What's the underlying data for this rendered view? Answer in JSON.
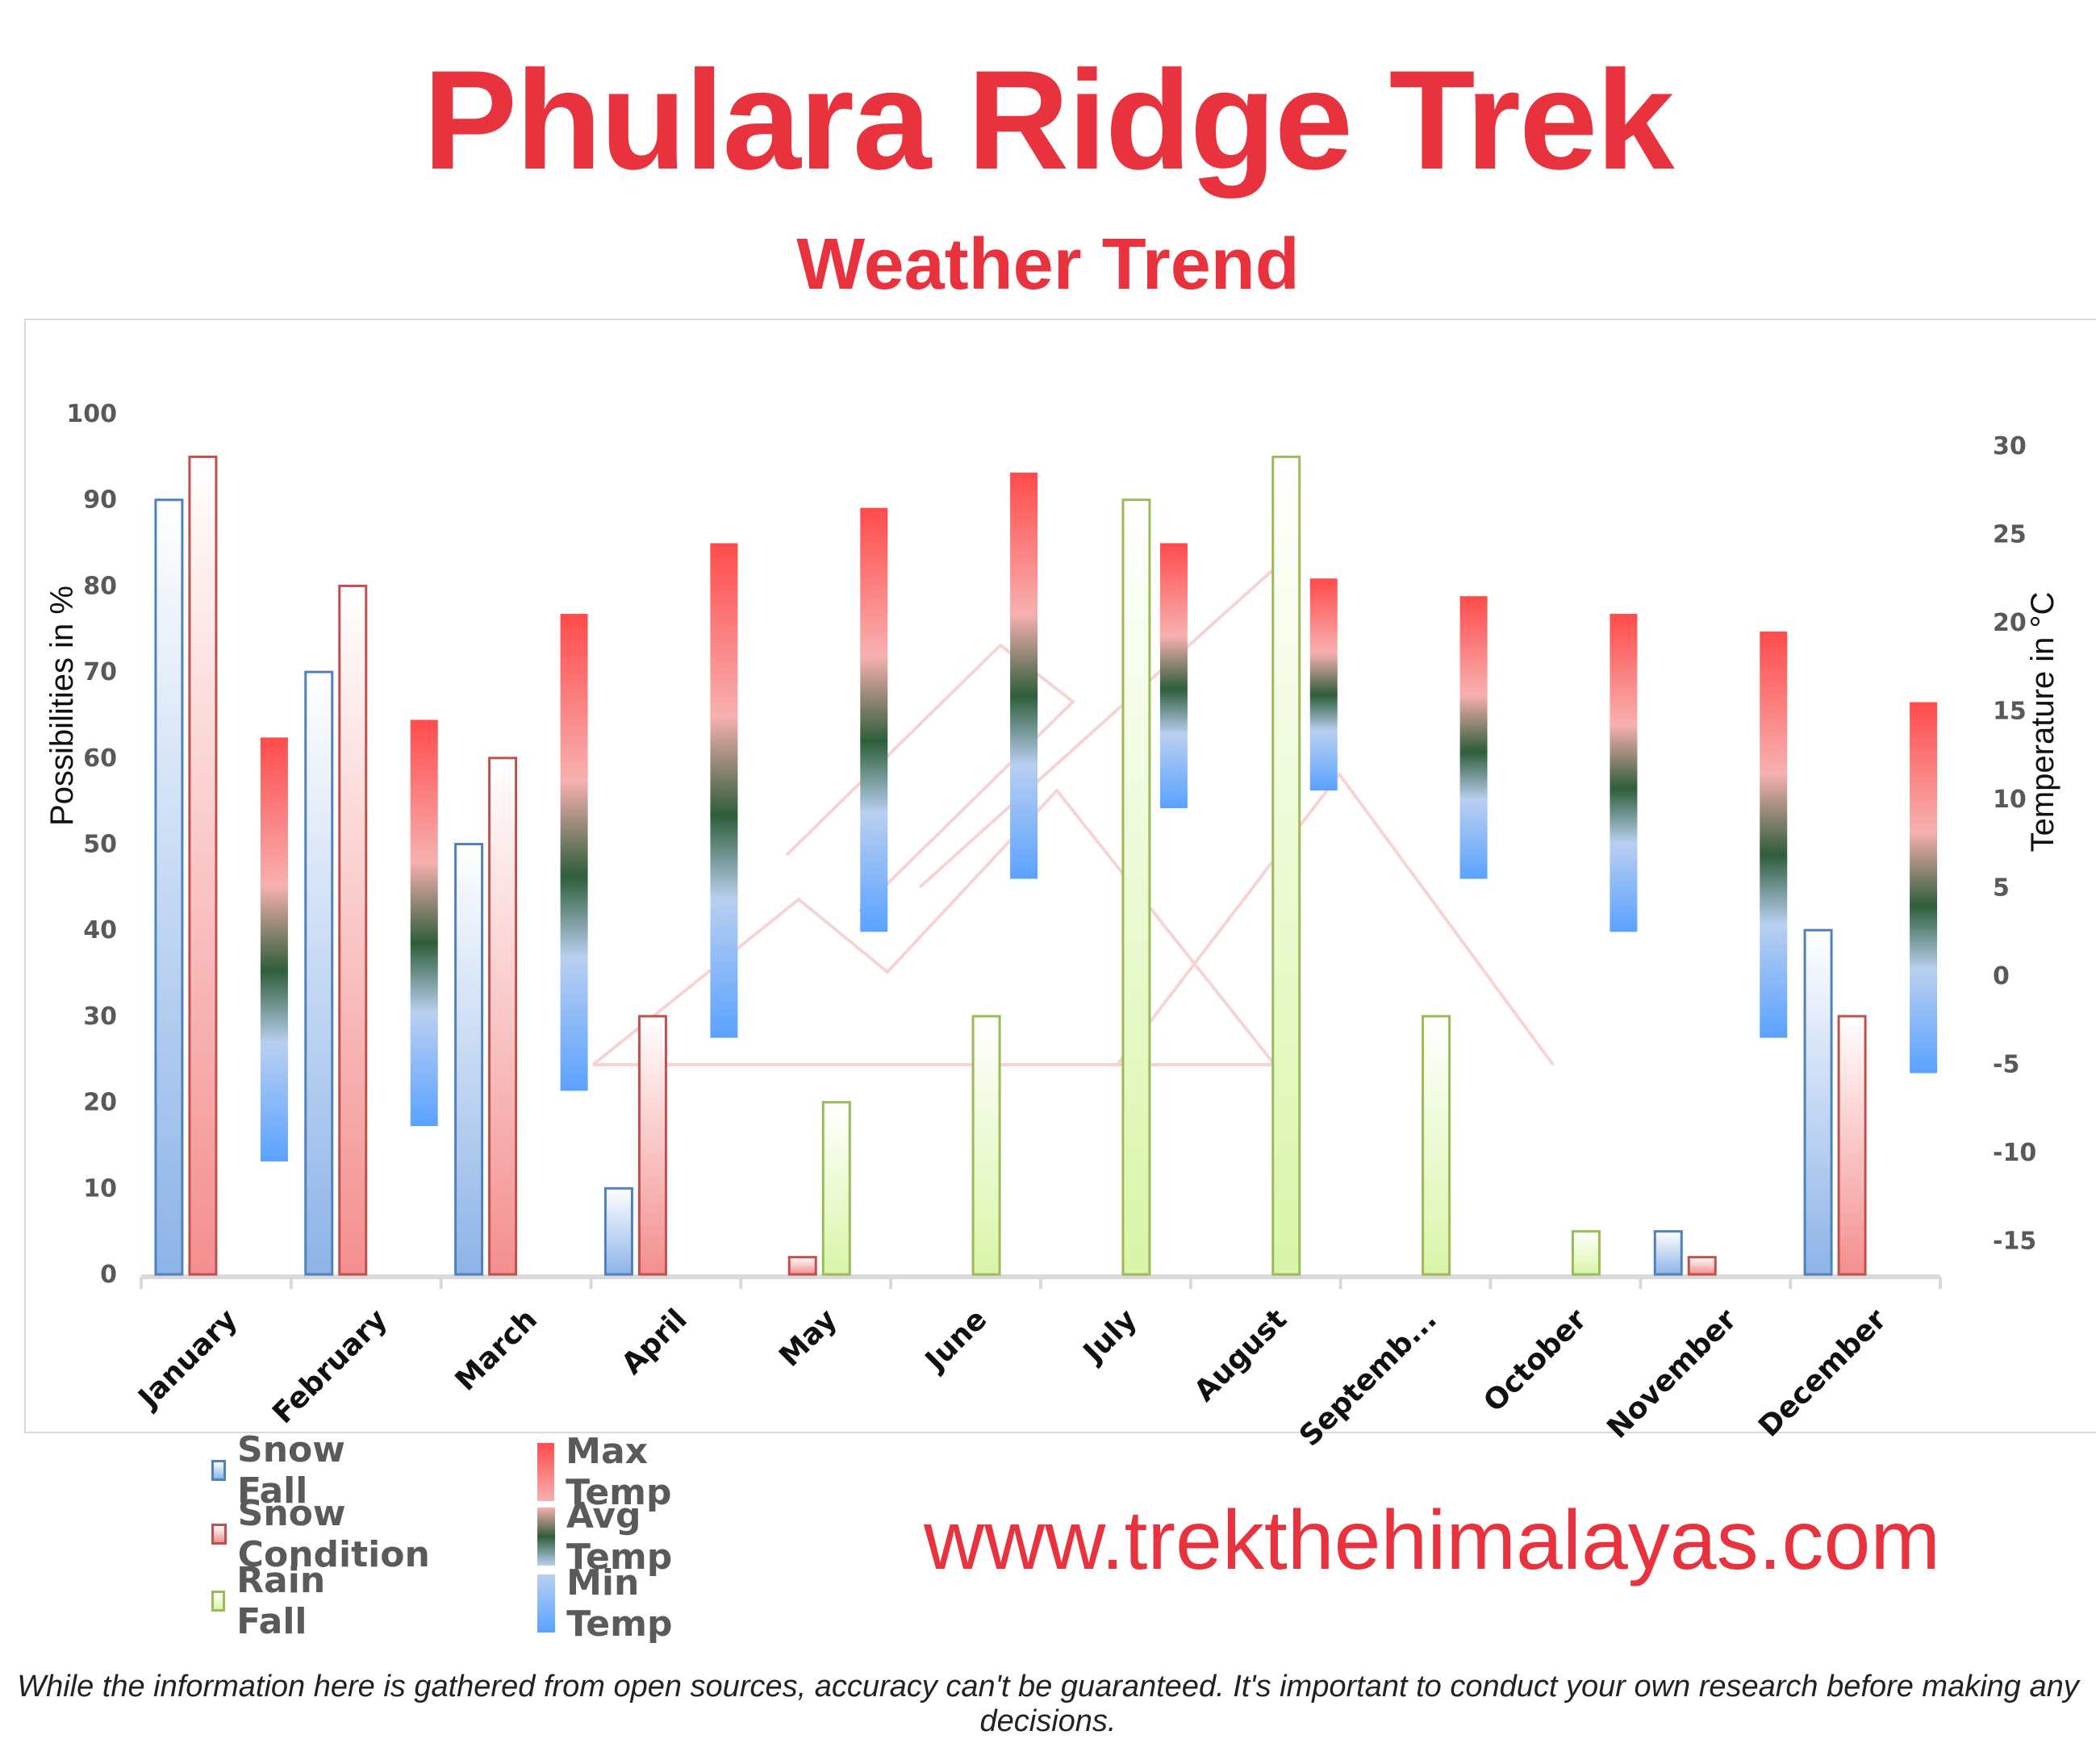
{
  "title": "Phulara Ridge Trek",
  "subtitle": "Weather Trend",
  "website": "www.trekthehimalayas.com",
  "disclaimer": "While the information here is gathered from open sources, accuracy can't be guaranteed. It's important to conduct your own research before making any decisions.",
  "colors": {
    "title": "#e8333f",
    "snow_fall": "#4f81bd",
    "snow_condition": "#c0504d",
    "rain_fall": "#9bbb59",
    "max_temp": "#ff4d4d",
    "avg_temp": "#2e5e3a",
    "min_temp": "#5aa2ff"
  },
  "legend": {
    "snow_fall": "Snow Fall",
    "snow_condition": "Snow Condition",
    "rain_fall": "Rain Fall",
    "max_temp": "Max Temp",
    "avg_temp": "Avg Temp",
    "min_temp": "Min Temp"
  },
  "chart_data": {
    "type": "bar",
    "title": "Weather Trend",
    "categories": [
      "January",
      "February",
      "March",
      "April",
      "May",
      "June",
      "July",
      "August",
      "Septemb...",
      "October",
      "November",
      "December"
    ],
    "ylabel": "Possibilities in %",
    "ylabel_right": "Temperature in °C",
    "ylim": [
      0,
      100
    ],
    "yticks": [
      0,
      10,
      20,
      30,
      40,
      50,
      60,
      70,
      80,
      90,
      100
    ],
    "ylim_right": [
      -17,
      33
    ],
    "yticks_right": [
      -15,
      -10,
      -5,
      0,
      5,
      10,
      15,
      20,
      25,
      30
    ],
    "series": [
      {
        "name": "Snow Fall",
        "values": [
          90,
          70,
          50,
          10,
          0,
          0,
          0,
          0,
          0,
          0,
          5,
          40
        ]
      },
      {
        "name": "Snow Condition",
        "values": [
          95,
          80,
          60,
          30,
          2,
          0,
          0,
          0,
          0,
          0,
          2,
          30
        ]
      },
      {
        "name": "Rain Fall",
        "values": [
          0,
          0,
          0,
          0,
          20,
          30,
          90,
          95,
          30,
          5,
          0,
          0
        ]
      }
    ],
    "temperature": {
      "max": [
        13.5,
        14.5,
        20.5,
        24.5,
        26.5,
        28.5,
        24.5,
        22.5,
        21.5,
        20.5,
        19.5,
        15.5
      ],
      "min": [
        -10.5,
        -8.5,
        -6.5,
        -3.5,
        2.5,
        5.5,
        9.5,
        10.5,
        5.5,
        2.5,
        -3.5,
        -5.5
      ],
      "names": [
        "Max Temp",
        "Avg Temp",
        "Min Temp"
      ]
    },
    "legend_position": "bottom-left",
    "grid": false
  }
}
